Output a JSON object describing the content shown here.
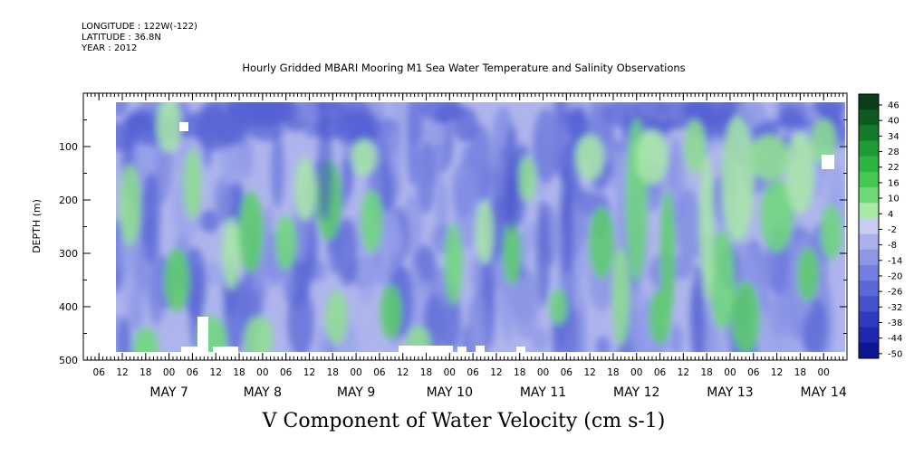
{
  "header": {
    "longitude": "LONGITUDE : 122W(-122)",
    "latitude": "LATITUDE : 36.8N",
    "year": "YEAR : 2012"
  },
  "chart_data": {
    "type": "heatmap",
    "title": "Hourly Gridded MBARI Mooring M1 Sea Water Temperature and Salinity Observations",
    "xlabel": "V Component of Water Velocity (cm s-1)",
    "ylabel": "DEPTH (m)",
    "y_ticks": [
      100,
      200,
      300,
      400,
      500
    ],
    "ylim": [
      500,
      0
    ],
    "x_range_hours": [
      "May 6 02:00",
      "May 14 06:00"
    ],
    "x_hour_ticks": [
      "06",
      "12",
      "18",
      "00",
      "06",
      "12",
      "18",
      "00",
      "06",
      "12",
      "18",
      "00",
      "06",
      "12",
      "18",
      "00",
      "06",
      "12",
      "18",
      "00",
      "06",
      "12",
      "18",
      "00",
      "06",
      "12",
      "18",
      "00",
      "06",
      "12",
      "18",
      "00"
    ],
    "x_date_labels": [
      "MAY  7",
      "MAY  8",
      "MAY  9",
      "MAY 10",
      "MAY 11",
      "MAY 12",
      "MAY 13",
      "MAY 14"
    ],
    "colorbar": {
      "levels": [
        "46",
        "40",
        "34",
        "28",
        "22",
        "16",
        "10",
        "4",
        "-2",
        "-8",
        "-14",
        "-20",
        "-26",
        "-32",
        "-38",
        "-44",
        "-50"
      ],
      "range": [
        -50,
        50
      ],
      "colors": [
        "#0a3d1a",
        "#0e5a22",
        "#157a2c",
        "#1f9a36",
        "#2db542",
        "#45c853",
        "#6fd97a",
        "#a8e9a8",
        "#c9cdf2",
        "#aab1ec",
        "#8d97e6",
        "#737fdf",
        "#5b68d6",
        "#4552cb",
        "#2f3cbf",
        "#1d28ad",
        "#10168f"
      ]
    },
    "data_extent_depth_m": [
      15,
      485
    ],
    "note_values": "field dominated by weak negative velocities (-2 to -20 cm/s) with positive (green, 4 to 22 cm/s) patches, strongest after May 12"
  }
}
